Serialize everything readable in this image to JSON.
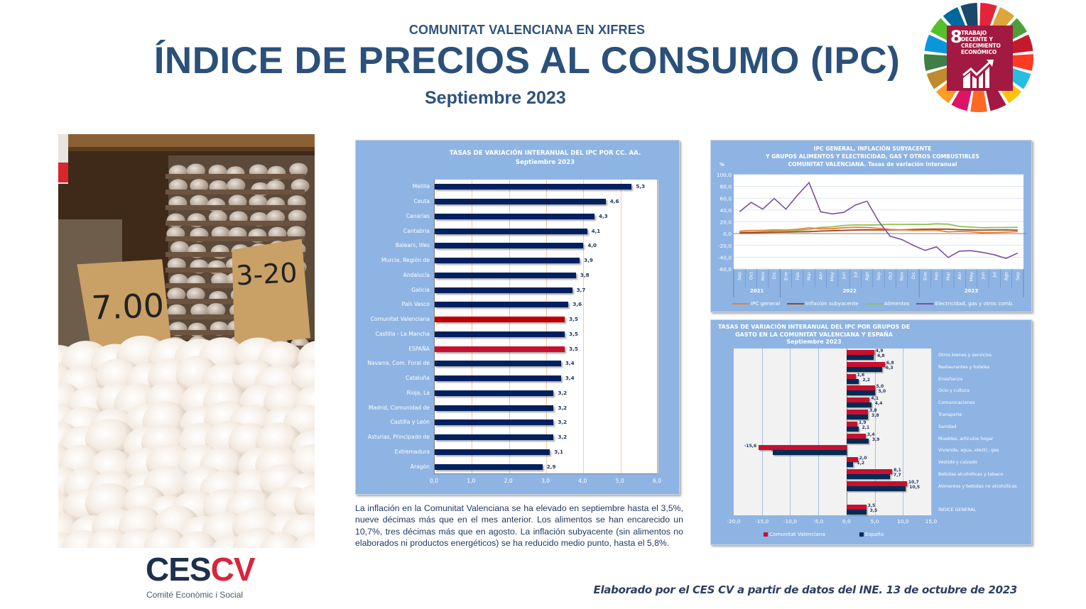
{
  "header": {
    "subtitle": "COMUNITAT VALENCIANA EN XIFRES",
    "title": "ÍNDICE DE PRECIOS AL CONSUMO (IPC)",
    "date": "Septiembre 2023"
  },
  "sdg_badge": {
    "number": "8",
    "text": "TRABAJO DECENTE Y CRECIMIENTO ECONÓMICO",
    "color": "#a21942",
    "icon": "growth-chart-icon"
  },
  "photo": {
    "description": "eggs-market-photo",
    "sign_1": "7.00",
    "sign_2": "3-20"
  },
  "summary_text": "La inflación en la Comunitat Valenciana se ha elevado en septiembre hasta el 3,5%, nueve décimas más que en el mes anterior. Los alimentos se han encarecido un 10,7%, tres décimas más que en agosto. La inflación subyacente (sin alimentos no elaborados ni productos energéticos) se ha reducido medio punto, hasta el 5,8%.",
  "logo": {
    "ces": "CES",
    "cv": "CV",
    "tagline": "Comité Econòmic i Social"
  },
  "footer": {
    "credit": "Elaborado por el CES CV a partir de datos del INE. 13 de octubre de 2023"
  },
  "colors": {
    "title_blue": "#2b5079",
    "panel_blue": "#8eb4e3",
    "bar_navy": "#002060",
    "highlight_cv": "#c00000",
    "highlight_es": "#c8102e",
    "line_ipc": "#ed7d31",
    "line_subyacente": "#a0441a",
    "line_alimentos": "#8fc352",
    "line_electricidad": "#7a4fa3"
  },
  "chart_data": [
    {
      "type": "bar",
      "orientation": "horizontal",
      "title": "TASAS DE VARIACIÓN INTERANUAL DEL IPC POR CC. AA.",
      "subtitle": "Septiembre 2023",
      "xlabel": "",
      "ylabel": "",
      "xlim": [
        0,
        6
      ],
      "xticks": [
        "0,0",
        "1,0",
        "2,0",
        "3,0",
        "4,0",
        "5,0",
        "6,0"
      ],
      "grid": true,
      "categories": [
        "Melilla",
        "Ceuta",
        "Canarias",
        "Cantabria",
        "Balears, Illes",
        "Murcia, Región de",
        "Andalucía",
        "Galicia",
        "País Vasco",
        "Comunitat Valenciana",
        "Castilla - La Mancha",
        "ESPAÑA",
        "Navarra, Com. Foral de",
        "Cataluña",
        "Rioja, La",
        "Madrid, Comunidad de",
        "Castilla y León",
        "Asturias, Principado de",
        "Extremadura",
        "Aragón"
      ],
      "values": [
        5.3,
        4.6,
        4.3,
        4.1,
        4.0,
        3.9,
        3.8,
        3.7,
        3.6,
        3.5,
        3.5,
        3.5,
        3.4,
        3.4,
        3.2,
        3.2,
        3.2,
        3.2,
        3.1,
        2.9
      ],
      "labels": [
        "5,3",
        "4,6",
        "4,3",
        "4,1",
        "4,0",
        "3,9",
        "3,8",
        "3,7",
        "3,6",
        "3,5",
        "3,5",
        "3,5",
        "3,4",
        "3,4",
        "3,2",
        "3,2",
        "3,2",
        "3,2",
        "3,1",
        "2,9"
      ],
      "highlight": {
        "Comunitat Valenciana": "cv",
        "ESPAÑA": "es"
      }
    },
    {
      "type": "line",
      "title": "IPC GENERAL, INFLACIÓN SUBYACENTE",
      "title_line2": "Y  GRUPOS ALIMENTOS Y ELECTRICIDAD, GAS Y OTROS COMBUSTIBLES",
      "title_line3": "COMUNITAT VALENCIANA. Tasas de variación interanual",
      "ylabel": "%",
      "ylim": [
        -60,
        100
      ],
      "yticks": [
        "100,0",
        "80,0",
        "60,0",
        "40,0",
        "20,0",
        "0,0",
        "-20,0",
        "-40,0",
        "-60,0"
      ],
      "grid": true,
      "legend_position": "bottom",
      "x": [
        "Sep",
        "Oct",
        "Nov",
        "Dic",
        "Ene",
        "Feb",
        "Mar",
        "Abr",
        "May",
        "Jun",
        "Jul",
        "Ago",
        "Sep",
        "Oct",
        "Nov",
        "Dic",
        "Ene",
        "Feb",
        "Mar",
        "Abr",
        "May",
        "Jun",
        "Jul",
        "Ago",
        "Sep"
      ],
      "years": [
        {
          "label": "2021",
          "span": 4
        },
        {
          "label": "2022",
          "span": 12
        },
        {
          "label": "2023",
          "span": 9
        }
      ],
      "series": [
        {
          "name": "IPC general",
          "values": [
            4.0,
            5.4,
            5.4,
            6.5,
            6.0,
            7.4,
            9.8,
            8.3,
            8.5,
            10.0,
            10.6,
            10.4,
            8.8,
            7.1,
            6.5,
            5.5,
            5.7,
            5.8,
            3.0,
            3.8,
            3.0,
            1.6,
            2.0,
            2.6,
            3.5
          ]
        },
        {
          "name": "Inflación subyacente",
          "values": [
            1.2,
            1.6,
            2.0,
            2.3,
            2.6,
            3.1,
            3.4,
            4.4,
            4.9,
            5.5,
            6.1,
            6.4,
            6.2,
            6.3,
            6.4,
            7.0,
            7.5,
            7.6,
            7.6,
            6.6,
            6.1,
            5.9,
            6.2,
            6.3,
            5.8
          ]
        },
        {
          "name": "Alimentos",
          "values": [
            1.8,
            2.4,
            3.0,
            4.5,
            4.8,
            5.6,
            7.0,
            10.5,
            11.6,
            13.8,
            14.7,
            14.5,
            14.8,
            15.8,
            15.5,
            15.7,
            15.4,
            16.6,
            16.0,
            12.1,
            11.0,
            9.9,
            10.2,
            10.4,
            10.7
          ]
        },
        {
          "name": "Electricidad, gas y otros comb.",
          "values": [
            37.0,
            53.0,
            41.5,
            59.5,
            41.5,
            65.0,
            86.5,
            37.0,
            33.5,
            36.0,
            48.5,
            55.0,
            21.0,
            -4.5,
            -10.0,
            -20.0,
            -28.5,
            -22.5,
            -40.5,
            -29.5,
            -29.0,
            -32.0,
            -36.0,
            -42.0,
            -33.0
          ]
        }
      ]
    },
    {
      "type": "bar",
      "orientation": "horizontal",
      "title": "TASAS DE VARIACIÓN INTERANUAL DEL IPC POR GRUPOS DE GASTO EN LA COMUNITAT VALENCIANA Y ESPAÑA",
      "subtitle": "Septiembre 2023",
      "xlim": [
        -20,
        15
      ],
      "xticks": [
        "-20,0",
        "-15,0",
        "-10,0",
        "-5,0",
        "0,0",
        "5,0",
        "10,0",
        "15,0"
      ],
      "grid": true,
      "legend_position": "bottom",
      "categories": [
        "Otros bienes y servicios",
        "Restaurantes y hoteles",
        "Enseñanza",
        "Ocio y cultura",
        "Comunicaciones",
        "Transporte",
        "Sanidad",
        "Muebles, artículos hogar",
        "Vivienda, agua, electr., gas",
        "Vestido y calzado",
        "Bebidas alcohólicas y tabaco",
        "Alimentos y bebidas no alcohólicas",
        "",
        "ÍNDICE GENERAL"
      ],
      "series": [
        {
          "name": "Comunitat Valenciana",
          "color": "#c8102e",
          "values": [
            4.9,
            6.8,
            1.6,
            5.0,
            4.1,
            3.8,
            1.9,
            3.4,
            -15.6,
            2.0,
            8.1,
            10.7,
            null,
            3.5
          ],
          "labels": [
            "4,9",
            "6,8",
            "1,6",
            "5,0",
            "4,1",
            "3,8",
            "1,9",
            "3,4",
            "-15,6",
            "2,0",
            "8,1",
            "10,7",
            "",
            "3,5"
          ]
        },
        {
          "name": "España",
          "color": "#002b55",
          "values": [
            4.8,
            6.3,
            2.2,
            5.0,
            4.4,
            3.8,
            2.1,
            3.9,
            -13.1,
            1.2,
            7.7,
            10.5,
            null,
            3.5
          ],
          "labels": [
            "4,8",
            "6,3",
            "2,2",
            "5,0",
            "4,4",
            "3,8",
            "2,1",
            "3,9",
            "-13,1",
            "1,2",
            "7,7",
            "10,5",
            "",
            "3,5"
          ]
        }
      ]
    }
  ]
}
